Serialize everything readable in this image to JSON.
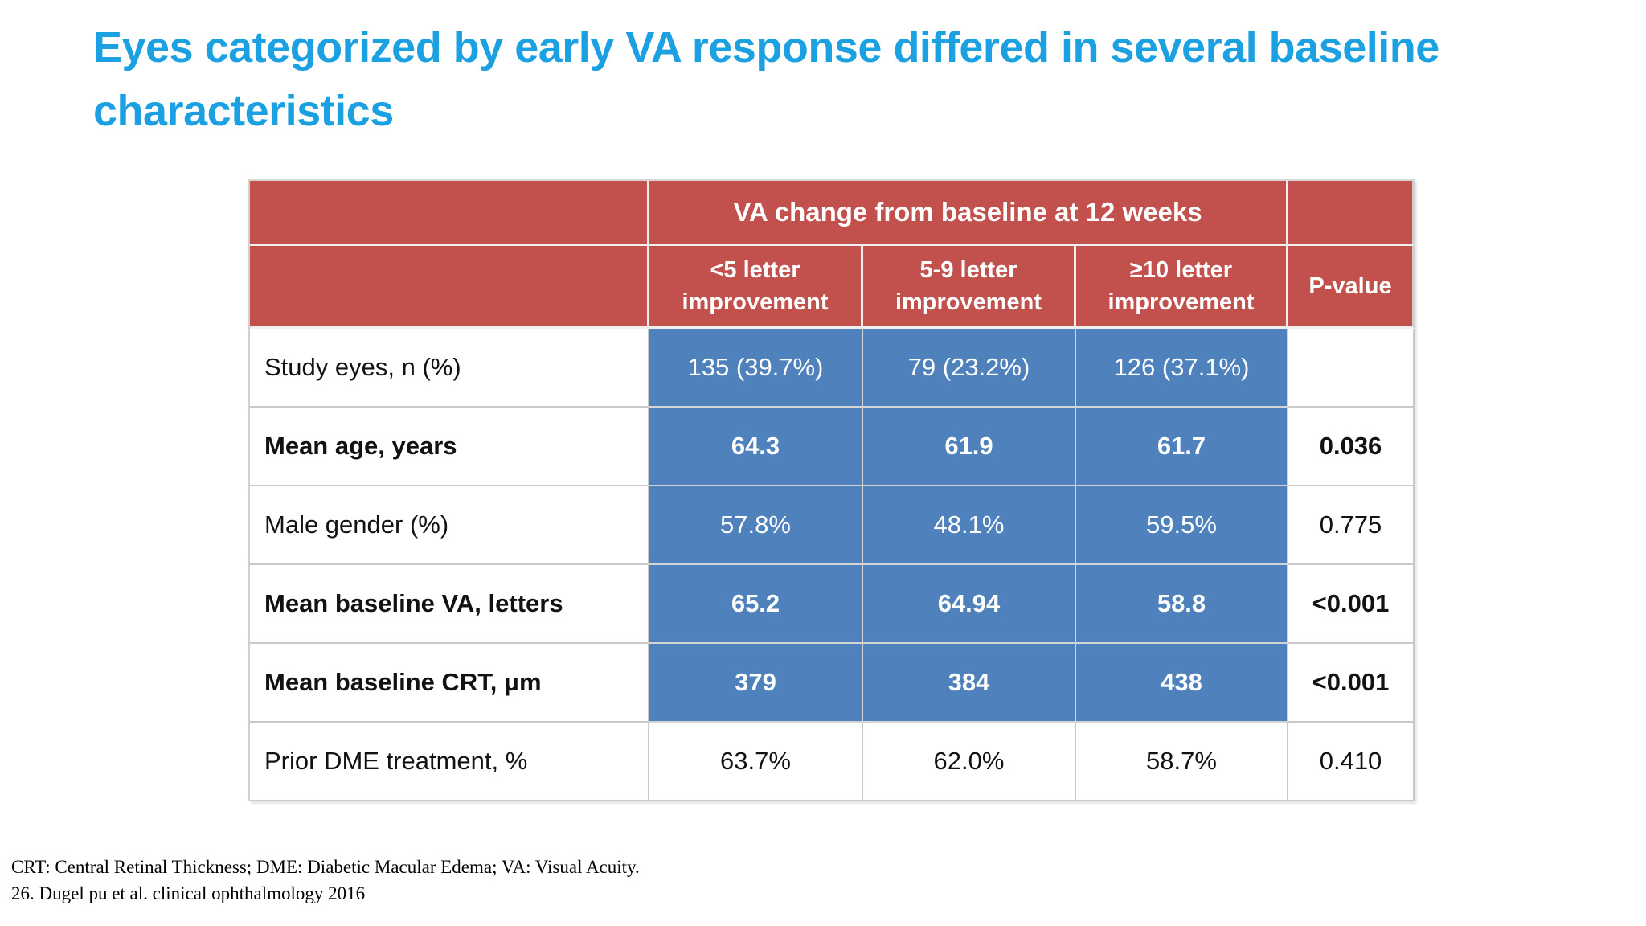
{
  "slide": {
    "title_line1": "Eyes categorized by early VA response differed in several baseline",
    "title_line2": "characteristics"
  },
  "colors": {
    "title_blue": "#1BA1E2",
    "header_red": "#C2514E",
    "cell_blue": "#4F81BD",
    "header_text": "#FFFFFF",
    "body_text": "#121212"
  },
  "table": {
    "header": {
      "group_title": "VA change from baseline at 12 weeks",
      "columns": [
        "<5 letter improvement",
        "5-9 letter improvement",
        "≥10 letter improvement"
      ],
      "pvalue_label": "P-value"
    },
    "rows": [
      {
        "label": "Study eyes, n (%)",
        "values": [
          "135 (39.7%)",
          "79 (23.2%)",
          "126 (37.1%)"
        ],
        "pvalue": "",
        "bold": false,
        "highlight": true
      },
      {
        "label": "Mean age, years",
        "values": [
          "64.3",
          "61.9",
          "61.7"
        ],
        "pvalue": "0.036",
        "bold": true,
        "highlight": true
      },
      {
        "label": "Male gender (%)",
        "values": [
          "57.8%",
          "48.1%",
          "59.5%"
        ],
        "pvalue": "0.775",
        "bold": false,
        "highlight": true
      },
      {
        "label": "Mean baseline VA, letters",
        "values": [
          "65.2",
          "64.94",
          "58.8"
        ],
        "pvalue": "<0.001",
        "bold": true,
        "highlight": true
      },
      {
        "label": "Mean baseline CRT, μm",
        "values": [
          "379",
          "384",
          "438"
        ],
        "pvalue": "<0.001",
        "bold": true,
        "highlight": true
      },
      {
        "label": "Prior DME treatment, %",
        "values": [
          "63.7%",
          "62.0%",
          "58.7%"
        ],
        "pvalue": "0.410",
        "bold": false,
        "highlight": false
      }
    ]
  },
  "footnotes": [
    "CRT: Central Retinal Thickness; DME: Diabetic Macular Edema; VA: Visual Acuity.",
    "26. Dugel pu et al. clinical ophthalmology 2016"
  ]
}
